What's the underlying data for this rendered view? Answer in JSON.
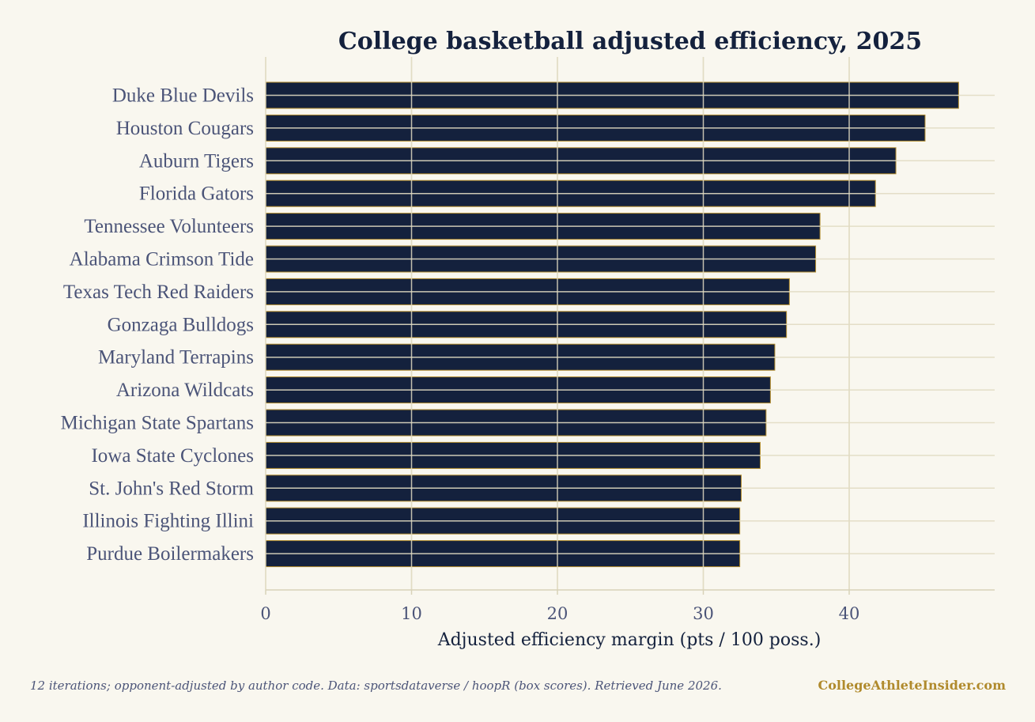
{
  "colors": {
    "background": "#f9f7ef",
    "bar": "#14213d",
    "bar_edge": "#b08a2c",
    "grid": "#e2dcc3",
    "axis": "#d8d2b8",
    "text_dark": "#14213d",
    "text_muted": "#4b5478",
    "brand": "#b08a2c"
  },
  "footer": {
    "note": "12 iterations; opponent-adjusted by author code.  Data: sportsdataverse / hoopR (box scores). Retrieved June 2026.",
    "brand": "CollegeAthleteInsider.com"
  },
  "chart_data": {
    "type": "bar",
    "orientation": "horizontal",
    "title": "College basketball adjusted efficiency, 2025",
    "xlabel": "Adjusted efficiency margin (pts / 100 poss.)",
    "ylabel": "",
    "xlim": [
      0,
      50
    ],
    "xticks": [
      0,
      10,
      20,
      30,
      40
    ],
    "grid": true,
    "legend": "none",
    "categories": [
      "Duke Blue Devils",
      "Houston Cougars",
      "Auburn Tigers",
      "Florida Gators",
      "Tennessee Volunteers",
      "Alabama Crimson Tide",
      "Texas Tech Red Raiders",
      "Gonzaga Bulldogs",
      "Maryland Terrapins",
      "Arizona Wildcats",
      "Michigan State Spartans",
      "Iowa State Cyclones",
      "St. John's Red Storm",
      "Illinois Fighting Illini",
      "Purdue Boilermakers"
    ],
    "values": [
      47.5,
      45.2,
      43.2,
      41.8,
      38.0,
      37.7,
      35.9,
      35.7,
      34.9,
      34.6,
      34.3,
      33.9,
      32.6,
      32.5,
      32.5
    ]
  }
}
